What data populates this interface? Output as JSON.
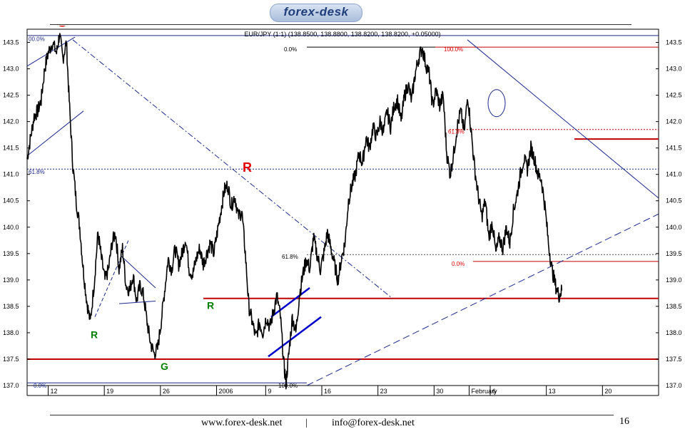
{
  "header": {
    "logo_text": "forex-desk"
  },
  "footer": {
    "website": "www.forex-desk.net",
    "separator": "|",
    "email": "info@forex-desk.net",
    "page_number": "16"
  },
  "chart_data": {
    "type": "line",
    "title": "EUR/JPY (1:1) (138.8500, 138.8800, 138.8200, 138.8200, +0.05000)",
    "ylim": [
      137.0,
      143.75
    ],
    "y_ticks": [
      "143.5",
      "143.0",
      "142.5",
      "142.0",
      "141.5",
      "141.0",
      "140.5",
      "140.0",
      "139.5",
      "139.0",
      "138.5",
      "138.0",
      "137.5",
      "137.0"
    ],
    "x_ticks": [
      "12",
      "19",
      "26",
      "2006",
      "9",
      "16",
      "23",
      "30",
      "February",
      "6",
      "13",
      "20"
    ],
    "x_tick_positions": [
      0,
      8,
      16,
      24,
      31,
      39,
      47,
      55,
      60,
      63,
      71,
      79
    ],
    "xlim": [
      -3,
      87
    ],
    "series": [
      {
        "values": [
          [
            -3,
            141.3
          ],
          [
            -2.5,
            141.7
          ],
          [
            -2,
            142.1
          ],
          [
            -1.5,
            142.2
          ],
          [
            -1,
            142.4
          ],
          [
            -0.5,
            143.0
          ],
          [
            0,
            143.3
          ],
          [
            0.6,
            143.5
          ],
          [
            1.2,
            143.3
          ],
          [
            1.6,
            143.65
          ],
          [
            2.1,
            143.2
          ],
          [
            2.6,
            143.5
          ],
          [
            3,
            142.4
          ],
          [
            3.5,
            141.2
          ],
          [
            4,
            140.5
          ],
          [
            4.5,
            140.0
          ],
          [
            5,
            139.2
          ],
          [
            5.5,
            138.6
          ],
          [
            6,
            138.2
          ],
          [
            6.6,
            139.0
          ],
          [
            7.1,
            139.9
          ],
          [
            7.6,
            139.4
          ],
          [
            8.1,
            139.0
          ],
          [
            8.6,
            139.2
          ],
          [
            9.1,
            139.7
          ],
          [
            9.6,
            139.9
          ],
          [
            10.1,
            139.2
          ],
          [
            10.6,
            139.6
          ],
          [
            11.1,
            138.9
          ],
          [
            11.6,
            138.8
          ],
          [
            12.1,
            139.1
          ],
          [
            12.6,
            138.6
          ],
          [
            13.1,
            138.9
          ],
          [
            13.6,
            138.7
          ],
          [
            14.1,
            138.2
          ],
          [
            14.6,
            137.8
          ],
          [
            15.1,
            137.6
          ],
          [
            15.6,
            137.7
          ],
          [
            16.1,
            138.2
          ],
          [
            16.6,
            138.8
          ],
          [
            17.1,
            139.4
          ],
          [
            17.6,
            139.2
          ],
          [
            18.1,
            139.6
          ],
          [
            18.6,
            139.3
          ],
          [
            19.1,
            139.5
          ],
          [
            19.6,
            139.8
          ],
          [
            20.1,
            139.2
          ],
          [
            20.6,
            139.1
          ],
          [
            21.1,
            139.4
          ],
          [
            21.6,
            139.6
          ],
          [
            22.1,
            139.3
          ],
          [
            22.6,
            139.5
          ],
          [
            23.1,
            139.7
          ],
          [
            23.6,
            139.5
          ],
          [
            24.1,
            139.9
          ],
          [
            24.6,
            140.3
          ],
          [
            25.1,
            140.7
          ],
          [
            25.6,
            140.8
          ],
          [
            26.1,
            140.4
          ],
          [
            26.6,
            140.6
          ],
          [
            27.1,
            140.2
          ],
          [
            27.6,
            140.3
          ],
          [
            28.1,
            139.5
          ],
          [
            28.6,
            138.5
          ],
          [
            29.1,
            138.2
          ],
          [
            29.6,
            137.9
          ],
          [
            30.1,
            138.2
          ],
          [
            30.6,
            138.0
          ],
          [
            31.1,
            138.3
          ],
          [
            31.6,
            138.1
          ],
          [
            32.1,
            138.4
          ],
          [
            32.6,
            138.7
          ],
          [
            33.1,
            138.3
          ],
          [
            33.6,
            137.4
          ],
          [
            33.9,
            137.05
          ],
          [
            34.3,
            137.6
          ],
          [
            34.8,
            138.3
          ],
          [
            35.3,
            138.0
          ],
          [
            35.8,
            138.7
          ],
          [
            36.3,
            139.1
          ],
          [
            36.8,
            139.4
          ],
          [
            37.3,
            139.2
          ],
          [
            37.8,
            139.8
          ],
          [
            38.3,
            139.5
          ],
          [
            38.8,
            139.2
          ],
          [
            39.3,
            139.5
          ],
          [
            39.8,
            139.9
          ],
          [
            40.3,
            139.6
          ],
          [
            40.8,
            139.3
          ],
          [
            41.3,
            139.0
          ],
          [
            41.8,
            139.4
          ],
          [
            42.3,
            139.7
          ],
          [
            42.8,
            140.5
          ],
          [
            43.3,
            140.8
          ],
          [
            43.8,
            141.0
          ],
          [
            44.3,
            141.4
          ],
          [
            44.8,
            141.2
          ],
          [
            45.3,
            141.7
          ],
          [
            45.8,
            141.5
          ],
          [
            46.3,
            141.9
          ],
          [
            46.8,
            141.7
          ],
          [
            47.3,
            142.0
          ],
          [
            47.8,
            141.8
          ],
          [
            48.3,
            142.2
          ],
          [
            48.8,
            141.9
          ],
          [
            49.3,
            142.3
          ],
          [
            49.8,
            142.4
          ],
          [
            50.3,
            142.0
          ],
          [
            50.8,
            142.5
          ],
          [
            51.3,
            142.7
          ],
          [
            51.8,
            142.4
          ],
          [
            52.3,
            142.9
          ],
          [
            52.8,
            143.2
          ],
          [
            53.3,
            143.4
          ],
          [
            53.8,
            143.1
          ],
          [
            54.3,
            142.9
          ],
          [
            54.8,
            142.3
          ],
          [
            55.3,
            142.6
          ],
          [
            55.8,
            142.3
          ],
          [
            56.3,
            142.5
          ],
          [
            56.8,
            141.4
          ],
          [
            57.3,
            141.0
          ],
          [
            57.8,
            141.4
          ],
          [
            58.3,
            141.9
          ],
          [
            58.8,
            142.2
          ],
          [
            59.3,
            141.8
          ],
          [
            59.8,
            142.5
          ],
          [
            60.3,
            141.8
          ],
          [
            60.8,
            141.1
          ],
          [
            61.3,
            140.6
          ],
          [
            61.8,
            140.2
          ],
          [
            62.3,
            140.5
          ],
          [
            62.8,
            139.8
          ],
          [
            63.3,
            140.1
          ],
          [
            63.8,
            139.5
          ],
          [
            64.3,
            139.8
          ],
          [
            64.8,
            139.6
          ],
          [
            65.3,
            140.0
          ],
          [
            65.8,
            139.7
          ],
          [
            66.3,
            140.3
          ],
          [
            66.8,
            140.6
          ],
          [
            67.3,
            141.0
          ],
          [
            67.8,
            141.3
          ],
          [
            68.3,
            141.1
          ],
          [
            68.8,
            141.5
          ],
          [
            69.3,
            141.3
          ],
          [
            69.8,
            141.0
          ],
          [
            70.3,
            140.9
          ],
          [
            70.8,
            140.4
          ],
          [
            71.3,
            139.7
          ],
          [
            71.8,
            139.2
          ],
          [
            72.3,
            138.9
          ],
          [
            72.8,
            138.7
          ],
          [
            73.2,
            138.8
          ]
        ]
      }
    ],
    "annotations": [
      {
        "text": "G",
        "color": "#e00000"
      },
      {
        "text": "R",
        "color": "#e00000"
      },
      {
        "text": "R",
        "color": "#008000"
      },
      {
        "text": "G",
        "color": "#008000"
      },
      {
        "text": "R",
        "color": "#008000"
      },
      {
        "text": "00.0%",
        "color": "#1b2a8f"
      },
      {
        "text": "61.8%",
        "color": "#1b2a8f"
      },
      {
        "text": "0.0%",
        "color": "#1b2a8f"
      },
      {
        "text": "0.0%",
        "color": "#000000"
      },
      {
        "text": "61.8%",
        "color": "#000000"
      },
      {
        "text": "100.0%",
        "color": "#000000"
      },
      {
        "text": "100.0%",
        "color": "#e00000"
      },
      {
        "text": "61.8%",
        "color": "#e00000"
      },
      {
        "text": "0.0%",
        "color": "#e00000"
      }
    ],
    "horizontal_levels": [
      143.41,
      141.1,
      138.65,
      137.5,
      139.35,
      141.67
    ],
    "grid": false,
    "legend": "none"
  }
}
